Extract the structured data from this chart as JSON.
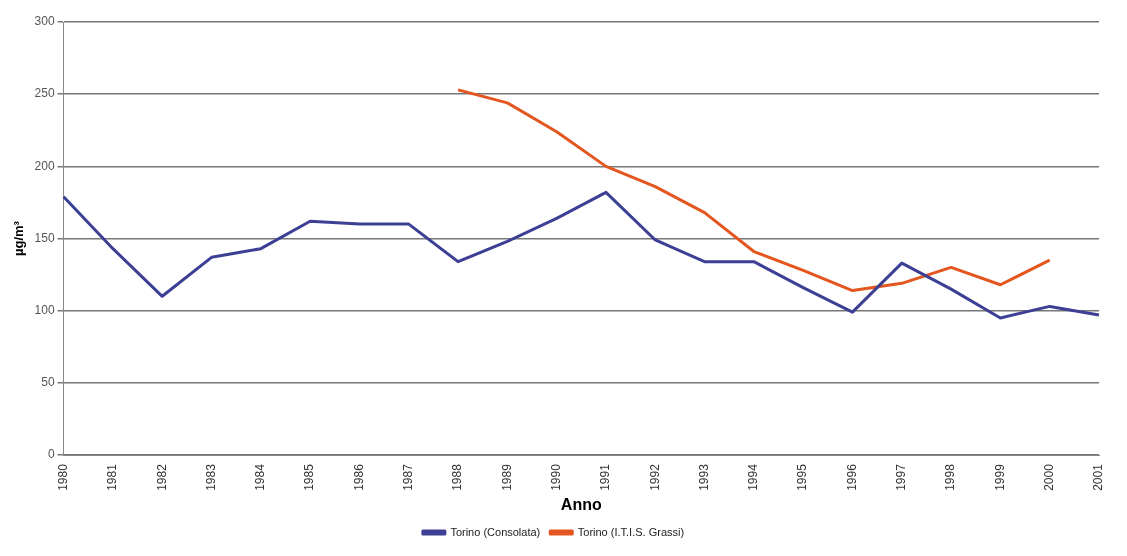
{
  "chart_data": {
    "type": "line",
    "xlabel": "Anno",
    "ylabel": "µg/m³",
    "categories": [
      "1980",
      "1981",
      "1982",
      "1983",
      "1984",
      "1985",
      "1986",
      "1987",
      "1988",
      "1989",
      "1990",
      "1991",
      "1992",
      "1993",
      "1994",
      "1995",
      "1996",
      "1997",
      "1998",
      "1999",
      "2000",
      "2001"
    ],
    "series": [
      {
        "name": "Torino (Consolata)",
        "color": "#3d3f95",
        "values": [
          179,
          143,
          110,
          137,
          143,
          162,
          160,
          160,
          134,
          148,
          164,
          182,
          149,
          134,
          134,
          116,
          99,
          133,
          115,
          95,
          103,
          97
        ]
      },
      {
        "name": "Torino (I.T.I.S. Grassi)",
        "color": "#e4561f",
        "values": [
          null,
          null,
          null,
          null,
          null,
          null,
          null,
          null,
          253,
          244,
          224,
          200,
          186,
          168,
          141,
          128,
          114,
          119,
          130,
          118,
          135,
          null
        ]
      }
    ],
    "ylim": [
      0,
      300
    ],
    "yticks": [
      0,
      50,
      100,
      150,
      200,
      250,
      300
    ],
    "grid": "y",
    "legend": "bottom",
    "marker": "none",
    "line_style": "solid"
  }
}
